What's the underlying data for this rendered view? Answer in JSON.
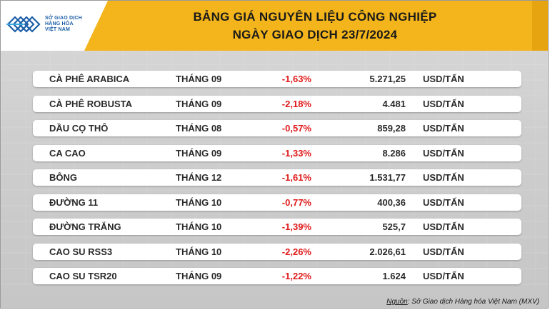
{
  "logo": {
    "line1": "SỞ GIAO DỊCH",
    "line2": "HÀNG HÓA",
    "line3": "VIỆT NAM"
  },
  "title": {
    "line1": "BẢNG GIÁ NGUYÊN LIỆU CÔNG NGHIỆP",
    "line2": "NGÀY GIAO DỊCH 23/7/2024"
  },
  "rows": [
    {
      "name": "CÀ PHÊ ARABICA",
      "month": "THÁNG 09",
      "change": "-1,63%",
      "price": "5.271,25",
      "unit": "USD/TẤN"
    },
    {
      "name": "CÀ PHÊ ROBUSTA",
      "month": "THÁNG 09",
      "change": "-2,18%",
      "price": "4.481",
      "unit": "USD/TẤN"
    },
    {
      "name": "DẦU CỌ THÔ",
      "month": "THÁNG 08",
      "change": "-0,57%",
      "price": "859,28",
      "unit": "USD/TẤN"
    },
    {
      "name": "CA CAO",
      "month": "THÁNG 09",
      "change": "-1,33%",
      "price": "8.286",
      "unit": "USD/TẤN"
    },
    {
      "name": "BÔNG",
      "month": "THÁNG 12",
      "change": "-1,61%",
      "price": "1.531,77",
      "unit": "USD/TẤN"
    },
    {
      "name": "ĐƯỜNG 11",
      "month": "THÁNG 10",
      "change": "-0,77%",
      "price": "400,36",
      "unit": "USD/TẤN"
    },
    {
      "name": "ĐƯỜNG TRẮNG",
      "month": "THÁNG 10",
      "change": "-1,39%",
      "price": "525,7",
      "unit": "USD/TẤN"
    },
    {
      "name": "CAO SU RSS3",
      "month": "THÁNG 10",
      "change": "-2,26%",
      "price": "2.026,61",
      "unit": "USD/TẤN"
    },
    {
      "name": "CAO SU TSR20",
      "month": "THÁNG 09",
      "change": "-1,22%",
      "price": "1.624",
      "unit": "USD/TẤN"
    }
  ],
  "source": {
    "label": "Nguồn",
    "text": ": Sở Giao dịch Hàng hóa Việt Nam (MXV)"
  },
  "colors": {
    "header": "#f3b51b",
    "negative": "#e01919",
    "logo": "#1d5fa8"
  }
}
